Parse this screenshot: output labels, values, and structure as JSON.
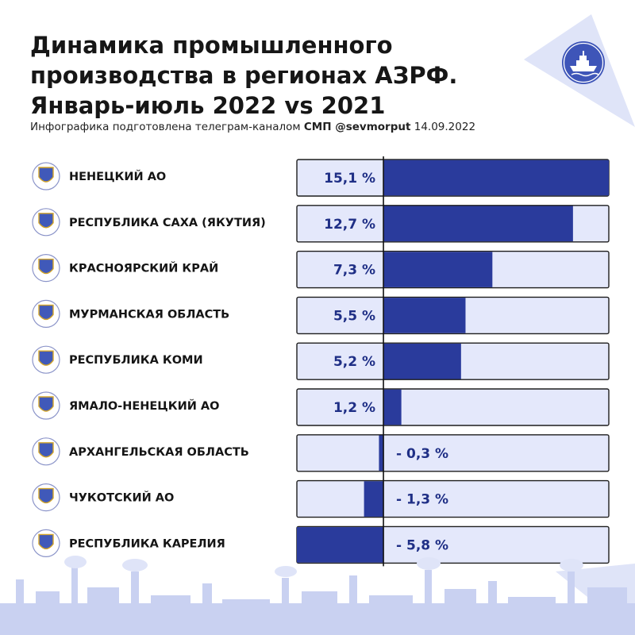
{
  "header": {
    "title_lines": [
      "Динамика промышленного",
      "производства в регионах АЗРФ.",
      "Январь-июль 2022 vs 2021"
    ],
    "subtitle_prefix": "Инфографика подготовлена телеграм-каналом",
    "subtitle_channel": "СМП @sevmorput",
    "subtitle_date": "14.09.2022"
  },
  "colors": {
    "bar": "#2a3b9c",
    "box_bg": "#e4e8fb",
    "box_border": "#1d1d1d",
    "accent_light": "#d6dcf5",
    "logo": "#3e55b8"
  },
  "icons": [
    "ship-logo-icon",
    "coat-of-arms-icon",
    "factory-skyline-icon"
  ],
  "chart_data": {
    "type": "bar",
    "orientation": "horizontal",
    "categories": [
      "НЕНЕЦКИЙ АО",
      "РЕСПУБЛИКА САХА (ЯКУТИЯ)",
      "КРАСНОЯРСКИЙ КРАЙ",
      "МУРМАНСКАЯ ОБЛАСТЬ",
      "РЕСПУБЛИКА КОМИ",
      "ЯМАЛО-НЕНЕЦКИЙ АО",
      "АРХАНГЕЛЬСКАЯ ОБЛАСТЬ",
      "ЧУКОТСКИЙ АО",
      "РЕСПУБЛИКА КАРЕЛИЯ"
    ],
    "values": [
      15.1,
      12.7,
      7.3,
      5.5,
      5.2,
      1.2,
      -0.3,
      -1.3,
      -5.8
    ],
    "value_labels": [
      "15,1 %",
      "12,7 %",
      "7,3 %",
      "5,5 %",
      "5,2 %",
      "1,2 %",
      "- 0,3 %",
      "- 1,3 %",
      "- 5,8 %"
    ],
    "unit": "%",
    "xlim": [
      -5.8,
      15.1
    ],
    "zero_line": true,
    "grid": false,
    "legend": "none"
  }
}
